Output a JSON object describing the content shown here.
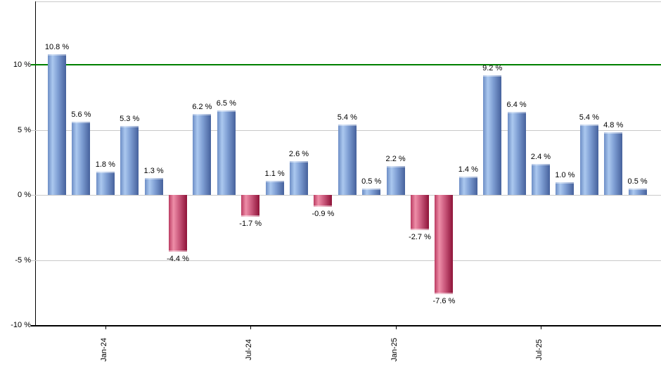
{
  "chart_data": {
    "type": "bar",
    "title": "",
    "unit": "%",
    "values": [
      10.8,
      5.6,
      1.8,
      5.3,
      1.3,
      -4.4,
      6.2,
      6.5,
      -1.7,
      1.1,
      2.6,
      -0.9,
      5.4,
      0.5,
      2.2,
      -2.7,
      -7.6,
      1.4,
      9.2,
      6.4,
      2.4,
      1.0,
      5.4,
      4.8,
      0.5
    ],
    "value_labels": [
      "10.8 %",
      "5.6 %",
      "1.8 %",
      "5.3 %",
      "1.3 %",
      "-4.4 %",
      "6.2 %",
      "6.5 %",
      "-1.7 %",
      "1.1 %",
      "2.6 %",
      "-0.9 %",
      "5.4 %",
      "0.5 %",
      "2.2 %",
      "-2.7 %",
      "-7.6 %",
      "1.4 %",
      "9.2 %",
      "6.4 %",
      "2.4 %",
      "1.0 %",
      "5.4 %",
      "4.8 %",
      "0.5 %"
    ],
    "x_ticks": [
      {
        "bar_index": 2,
        "label": "Jan-24"
      },
      {
        "bar_index": 8,
        "label": "Jul-24"
      },
      {
        "bar_index": 14,
        "label": "Jan-25"
      },
      {
        "bar_index": 20,
        "label": "Jul-25"
      }
    ],
    "y_ticks": [
      {
        "value": 10,
        "label": "10 %"
      },
      {
        "value": 5,
        "label": "5 %"
      },
      {
        "value": 0,
        "label": "0 %"
      },
      {
        "value": -5,
        "label": "-5 %"
      },
      {
        "value": -10,
        "label": "-10 %"
      }
    ],
    "ylim": [
      -10,
      14.9
    ],
    "grid": true,
    "legend": false,
    "reference_line": {
      "value": 10,
      "color": "#008000"
    },
    "colors": {
      "positive_bar_light": "#abc8ef",
      "positive_bar_mid": "#7f9fd4",
      "positive_bar_dark": "#46619c",
      "positive_bar_edge": "#6d8ec6",
      "negative_bar_light": "#ee8ea8",
      "negative_bar_mid": "#cc5b7e",
      "negative_bar_dark": "#8e1238",
      "negative_bar_edge": "#bb3c62",
      "gridline": "#c9c9c9",
      "axis": "#000000",
      "label_text": "#000000",
      "background": "#ffffff"
    }
  }
}
